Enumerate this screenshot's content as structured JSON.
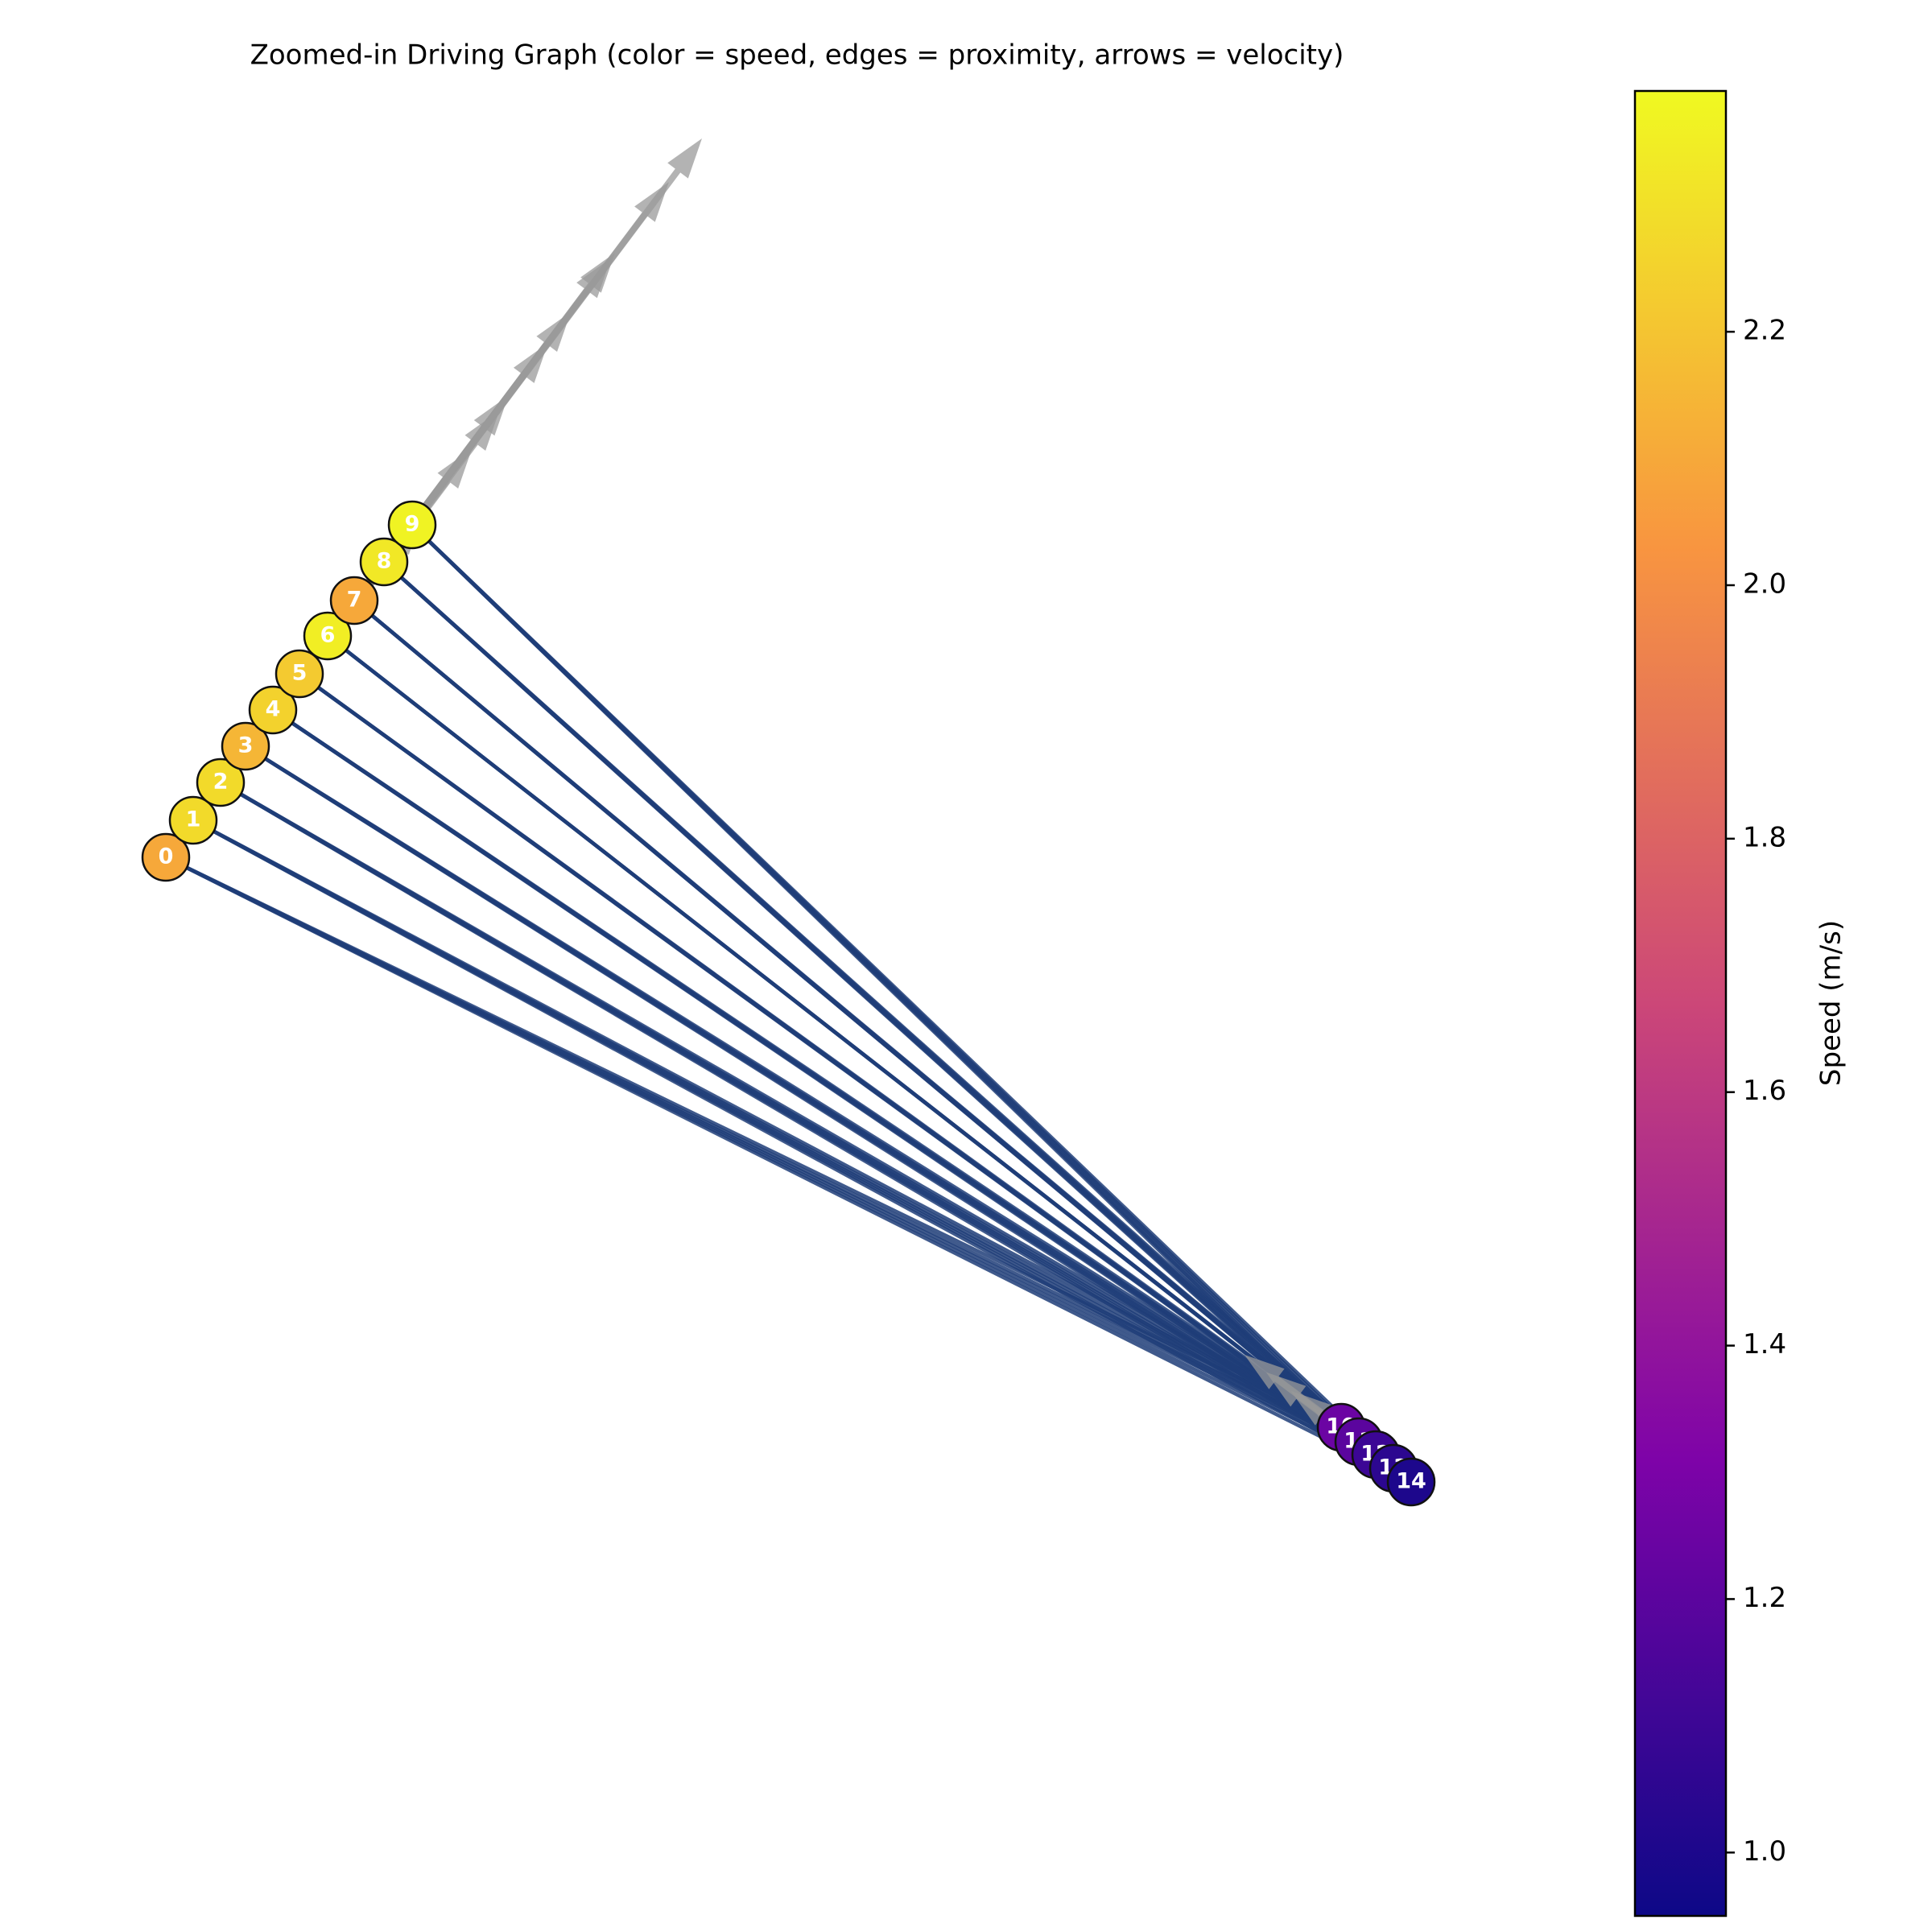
{
  "chart_data": {
    "type": "network",
    "title": "Zoomed-in Driving Graph (color = speed, edges = proximity, arrows = velocity)",
    "nodes": [
      "0",
      "1",
      "2",
      "3",
      "4",
      "5",
      "6",
      "7",
      "8",
      "9",
      "10",
      "11",
      "12",
      "13",
      "14"
    ],
    "values": [
      2.1,
      2.28,
      2.28,
      2.15,
      2.25,
      2.22,
      2.35,
      2.1,
      2.33,
      2.37,
      1.25,
      1.2,
      1.1,
      1.05,
      1.0
    ],
    "colormap": "plasma",
    "colorbar_label": "Speed (m/s)",
    "clim": [
      0.95,
      2.39
    ],
    "cticks": [
      {
        "value": 1.0,
        "label": "1.0"
      },
      1.2,
      1.4,
      1.6,
      1.8,
      {
        "value": 2.0,
        "label": "2.0"
      },
      2.2
    ]
  }
}
